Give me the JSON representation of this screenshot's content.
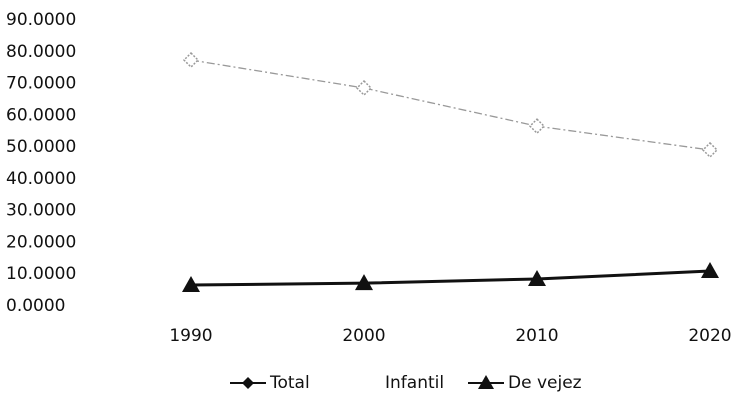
{
  "chart_data": {
    "type": "line",
    "categories": [
      "1990",
      "2000",
      "2010",
      "2020"
    ],
    "series": [
      {
        "name": "Total",
        "color": "#999999",
        "marker": "diamond",
        "values": [
          77.4,
          68.6,
          56.6,
          49.1
        ]
      },
      {
        "name": "Infantil",
        "color": "#ffffff",
        "values": [
          null,
          null,
          null,
          null
        ]
      },
      {
        "name": "De vejez",
        "color": "#111111",
        "marker": "triangle",
        "values": [
          6.6,
          7.2,
          8.5,
          11.0
        ]
      }
    ],
    "ylim": [
      0,
      90
    ],
    "yticks": [
      {
        "value": 0,
        "label": "0.0000"
      },
      {
        "value": 10,
        "label": "10.0000"
      },
      {
        "value": 20,
        "label": "20.0000"
      },
      {
        "value": 30,
        "label": "30.0000"
      },
      {
        "value": 40,
        "label": "40.0000"
      },
      {
        "value": 50,
        "label": "50.0000"
      },
      {
        "value": 60,
        "label": "60.0000"
      },
      {
        "value": 70,
        "label": "70.0000"
      },
      {
        "value": 80,
        "label": "80.0000"
      },
      {
        "value": 90,
        "label": "90.0000"
      }
    ],
    "grid": false,
    "legend": "bottom"
  }
}
